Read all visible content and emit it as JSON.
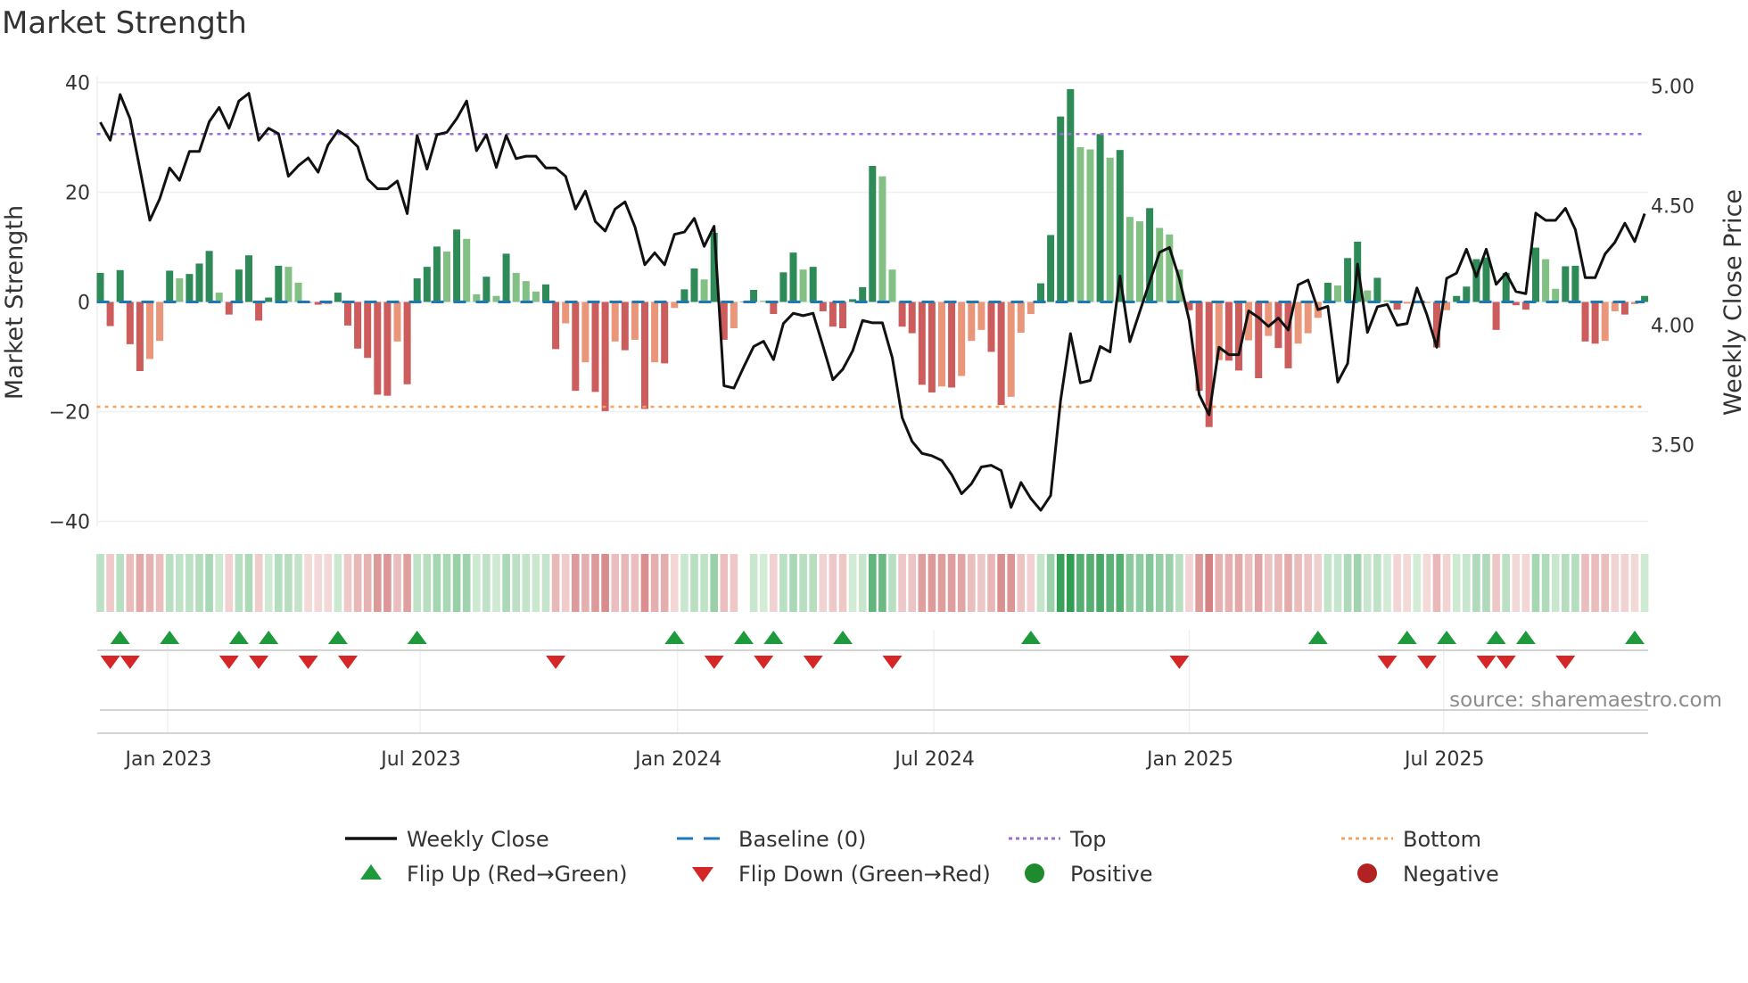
{
  "title": "Market Strength",
  "source": "source: sharemaestro.com",
  "colors": {
    "pos_strong": "#2e8b57",
    "pos_weak": "#82c084",
    "neg_strong": "#cd5c5c",
    "neg_weak": "#e9967a",
    "top": "#9b6ddc",
    "bottom": "#f4a460",
    "baseline": "#1f77b4",
    "flip_up": "#1e9a3c",
    "flip_down": "#d62728",
    "positive": "#1e8c2e",
    "negative": "#b22222",
    "price": "#111111"
  },
  "chart_data": {
    "type": "bar+line",
    "title": "Market Strength",
    "ylabel": "Market Strength",
    "y2label": "Weekly Close Price",
    "ylim": [
      -42,
      42
    ],
    "y2lim": [
      3.3,
      5.05
    ],
    "yticks": [
      {
        "v": 40,
        "label": "40"
      },
      {
        "v": 20,
        "label": "20"
      },
      {
        "v": 0,
        "label": "0"
      },
      {
        "v": -20,
        "label": "−20"
      },
      {
        "v": -40,
        "label": "−40"
      }
    ],
    "y2ticks": [
      {
        "v": 5.0,
        "label": "5.00"
      },
      {
        "v": 4.5,
        "label": "4.50"
      },
      {
        "v": 4.0,
        "label": "4.00"
      },
      {
        "v": 3.5,
        "label": "3.50"
      }
    ],
    "xticks": [
      {
        "week": 6.8,
        "label": "Jan 2023"
      },
      {
        "week": 32.3,
        "label": "Jul 2023"
      },
      {
        "week": 58.3,
        "label": "Jan 2024"
      },
      {
        "week": 84.2,
        "label": "Jul 2024"
      },
      {
        "week": 110.0,
        "label": "Jan 2025"
      },
      {
        "week": 135.7,
        "label": "Jul 2025"
      }
    ],
    "top": 30.6,
    "bottom": -19.1,
    "baseline": 0,
    "strength": [
      5.3,
      -4.4,
      5.8,
      -7.7,
      -12.6,
      -10.4,
      -7.1,
      5.7,
      4.3,
      5.1,
      7.0,
      9.3,
      1.7,
      -2.3,
      5.9,
      8.5,
      -3.4,
      0.8,
      6.6,
      6.4,
      3.5,
      -0.2,
      -0.5,
      -0.4,
      1.7,
      -4.3,
      -8.5,
      -10.2,
      -16.9,
      -17.1,
      -7.2,
      -15.0,
      4.3,
      6.4,
      10.1,
      9.2,
      13.2,
      11.5,
      1.4,
      4.6,
      1.1,
      8.8,
      5.3,
      3.8,
      1.9,
      3.2,
      -8.6,
      -3.9,
      -16.2,
      -11.0,
      -16.4,
      -19.9,
      -7.2,
      -8.8,
      -6.9,
      -19.5,
      -11.0,
      -11.2,
      -1.1,
      2.3,
      6.1,
      4.1,
      12.6,
      -6.9,
      -4.8,
      0,
      2.2,
      0.2,
      -2.2,
      5.4,
      9.0,
      5.9,
      6.4,
      -1.7,
      -4.5,
      -4.8,
      0.5,
      2.7,
      24.8,
      22.9,
      5.9,
      -4.5,
      -5.7,
      -15.1,
      -16.5,
      -15.4,
      -15.6,
      -13.5,
      -7.1,
      -5.1,
      -9.1,
      -18.8,
      -17.3,
      -5.6,
      -2.2,
      3.4,
      12.2,
      33.8,
      38.8,
      28.2,
      27.8,
      30.6,
      26.3,
      27.7,
      15.5,
      14.7,
      17.1,
      13.5,
      12.3,
      5.9,
      -1.5,
      -16.2,
      -22.8,
      -10.6,
      -10.7,
      -12.5,
      -7.0,
      -13.9,
      -6.2,
      -8.4,
      -12.1,
      -7.6,
      -5.7,
      -2.9,
      3.5,
      3.0,
      8.0,
      11.0,
      2.1,
      4.4,
      0.3,
      -1.4,
      -0.3,
      0.2,
      -0.2,
      -8.3,
      -1.5,
      1.1,
      2.8,
      7.8,
      8.1,
      -5.1,
      5.3,
      -0.6,
      -1.4,
      9.9,
      7.8,
      2.4,
      6.5,
      6.6,
      -7.2,
      -7.6,
      -7.1,
      -1.7,
      -2.3,
      -0.4,
      1.1
    ],
    "shade": [
      "d",
      "r",
      "d",
      "r",
      "r",
      "s",
      "s",
      "d",
      "l",
      "d",
      "d",
      "d",
      "l",
      "r",
      "d",
      "d",
      "r",
      "d",
      "d",
      "l",
      "l",
      "s",
      "r",
      "s",
      "d",
      "r",
      "r",
      "r",
      "r",
      "r",
      "s",
      "r",
      "d",
      "d",
      "d",
      "l",
      "d",
      "l",
      "l",
      "d",
      "l",
      "d",
      "l",
      "l",
      "l",
      "d",
      "r",
      "s",
      "r",
      "s",
      "r",
      "r",
      "s",
      "r",
      "s",
      "r",
      "s",
      "r",
      "s",
      "d",
      "d",
      "l",
      "d",
      "r",
      "s",
      "d",
      "d",
      "l",
      "r",
      "d",
      "d",
      "l",
      "d",
      "r",
      "r",
      "r",
      "d",
      "d",
      "d",
      "l",
      "l",
      "r",
      "r",
      "r",
      "r",
      "s",
      "r",
      "s",
      "s",
      "s",
      "r",
      "r",
      "s",
      "s",
      "s",
      "d",
      "d",
      "d",
      "d",
      "l",
      "l",
      "d",
      "l",
      "d",
      "l",
      "l",
      "d",
      "l",
      "l",
      "l",
      "r",
      "r",
      "r",
      "s",
      "r",
      "r",
      "s",
      "r",
      "s",
      "r",
      "r",
      "s",
      "s",
      "s",
      "d",
      "l",
      "d",
      "d",
      "l",
      "d",
      "l",
      "r",
      "s",
      "l",
      "s",
      "r",
      "s",
      "d",
      "d",
      "d",
      "d",
      "r",
      "d",
      "r",
      "r",
      "d",
      "l",
      "l",
      "d",
      "d",
      "r",
      "r",
      "s",
      "s",
      "r",
      "s",
      "d"
    ],
    "price": [
      4.849,
      4.774,
      4.965,
      4.864,
      4.653,
      4.439,
      4.529,
      4.658,
      4.606,
      4.727,
      4.727,
      4.851,
      4.911,
      4.824,
      4.938,
      4.97,
      4.774,
      4.824,
      4.801,
      4.623,
      4.667,
      4.7,
      4.64,
      4.754,
      4.814,
      4.787,
      4.747,
      4.611,
      4.571,
      4.571,
      4.603,
      4.467,
      4.794,
      4.653,
      4.797,
      4.807,
      4.864,
      4.938,
      4.73,
      4.797,
      4.66,
      4.794,
      4.697,
      4.707,
      4.707,
      4.658,
      4.658,
      4.623,
      4.486,
      4.561,
      4.434,
      4.394,
      4.486,
      4.516,
      4.412,
      4.253,
      4.303,
      4.253,
      4.38,
      4.39,
      4.447,
      4.33,
      4.414,
      3.747,
      3.737,
      3.826,
      3.911,
      3.933,
      3.856,
      4.007,
      4.05,
      4.04,
      4.05,
      3.913,
      3.772,
      3.816,
      3.893,
      4.02,
      4.01,
      4.01,
      3.864,
      3.613,
      3.514,
      3.464,
      3.454,
      3.434,
      3.375,
      3.295,
      3.337,
      3.407,
      3.414,
      3.392,
      3.238,
      3.342,
      3.275,
      3.226,
      3.288,
      3.685,
      3.965,
      3.759,
      3.769,
      3.911,
      3.888,
      4.206,
      3.931,
      4.057,
      4.181,
      4.305,
      4.325,
      4.194,
      4.02,
      3.71,
      3.625,
      3.908,
      3.877,
      3.877,
      4.06,
      4.032,
      3.995,
      4.03,
      3.98,
      4.169,
      4.189,
      4.065,
      4.079,
      3.762,
      3.84,
      4.256,
      3.97,
      4.077,
      4.087,
      4.0,
      4.007,
      4.156,
      4.045,
      3.908,
      4.196,
      4.218,
      4.318,
      4.203,
      4.318,
      4.171,
      4.218,
      4.141,
      4.132,
      4.469,
      4.439,
      4.439,
      4.489,
      4.4,
      4.199,
      4.199,
      4.298,
      4.347,
      4.427,
      4.35,
      4.467
    ],
    "flip_up_weeks": [
      2,
      7,
      14,
      17,
      24,
      32,
      58,
      65,
      68,
      75,
      94,
      123,
      132,
      136,
      141,
      144,
      155
    ],
    "flip_down_weeks": [
      1,
      3,
      13,
      16,
      21,
      25,
      46,
      62,
      67,
      72,
      80,
      109,
      130,
      134,
      140,
      142,
      148
    ],
    "legend": [
      {
        "label": "Weekly Close",
        "kind": "line"
      },
      {
        "label": "Baseline (0)",
        "kind": "dash"
      },
      {
        "label": "Top",
        "kind": "dot-top"
      },
      {
        "label": "Bottom",
        "kind": "dot-bottom"
      },
      {
        "label": "Flip Up (Red→Green)",
        "kind": "tri-up"
      },
      {
        "label": "Flip Down (Green→Red)",
        "kind": "tri-down"
      },
      {
        "label": "Positive",
        "kind": "dot-pos"
      },
      {
        "label": "Negative",
        "kind": "dot-neg"
      }
    ]
  }
}
